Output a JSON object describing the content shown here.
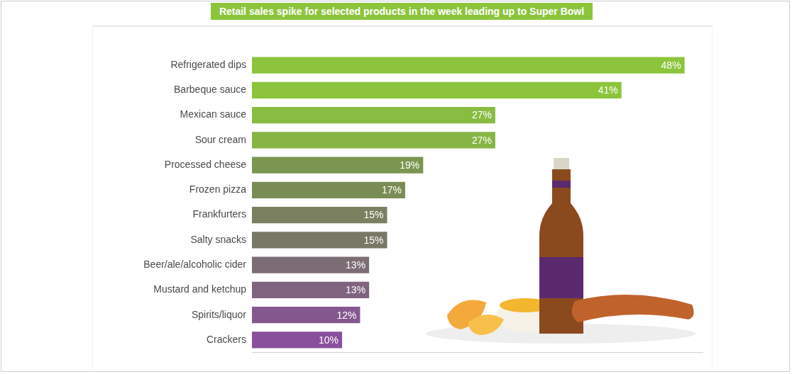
{
  "chart_data": {
    "type": "bar",
    "orientation": "horizontal",
    "title": "Retail sales spike for selected products in the week leading up to Super Bowl",
    "categories": [
      "Refrigerated dips",
      "Barbeque sauce",
      "Mexican sauce",
      "Sour cream",
      "Processed cheese",
      "Frozen pizza",
      "Frankfurters",
      "Salty snacks",
      "Beer/ale/alcoholic cider",
      "Mustard and ketchup",
      "Spirits/liquor",
      "Crackers"
    ],
    "values": [
      48,
      41,
      27,
      27,
      19,
      17,
      15,
      15,
      13,
      13,
      12,
      10
    ],
    "value_labels": [
      "48%",
      "41%",
      "27%",
      "27%",
      "19%",
      "17%",
      "15%",
      "15%",
      "13%",
      "13%",
      "12%",
      "10%"
    ],
    "colors": [
      "#8cc43c",
      "#8cc43c",
      "#89bd42",
      "#86b546",
      "#7b9650",
      "#7a8c55",
      "#7a7f60",
      "#797766",
      "#7c6c73",
      "#7f637f",
      "#85578f",
      "#8a4f9c"
    ],
    "xlim": [
      0,
      50
    ],
    "xticks": [],
    "grid": false,
    "data_labels": true,
    "tick_labels": "y"
  }
}
